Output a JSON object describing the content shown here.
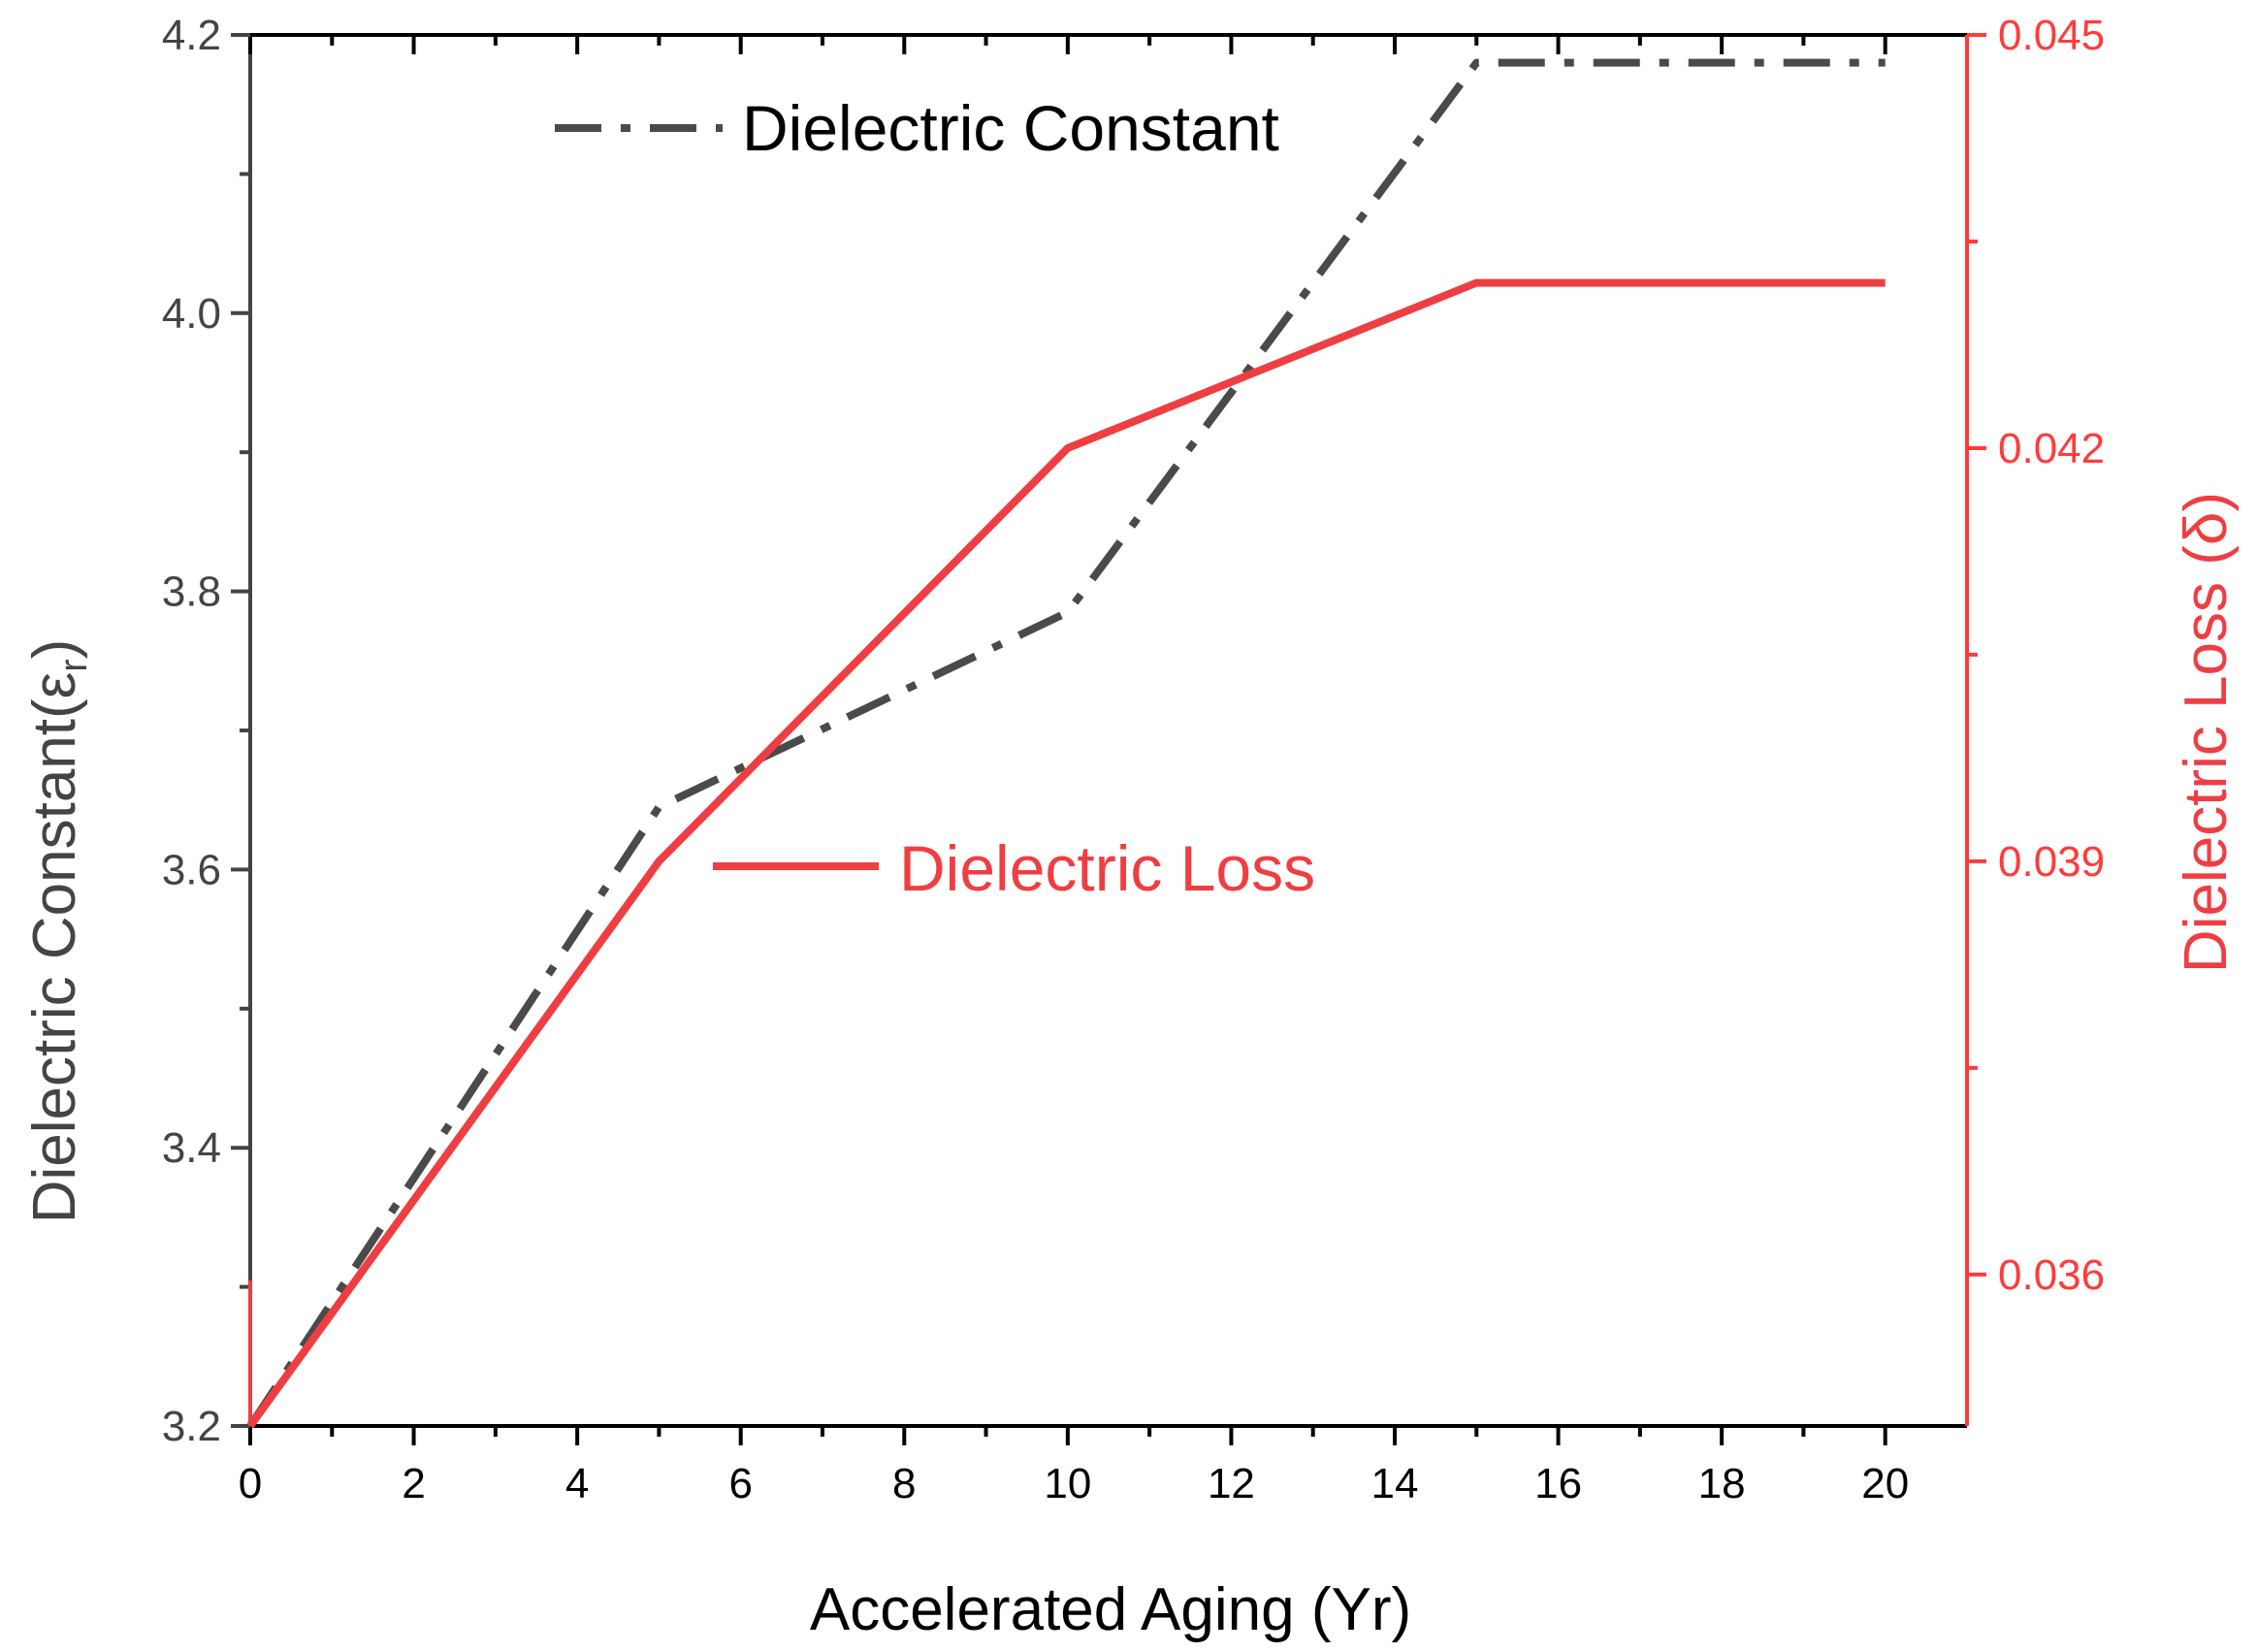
{
  "chart_data": {
    "type": "line",
    "title": "",
    "xlabel": "Accelerated Aging (Yr)",
    "ylabel_left": "Dielectric Constant(εr)",
    "ylabel_left_main": "Dielectric Constant(ε",
    "ylabel_left_sub": "r",
    "ylabel_left_close": ")",
    "ylabel_right": "Dielectric Loss (δ)",
    "x_ticks": [
      "0",
      "2",
      "4",
      "6",
      "8",
      "10",
      "12",
      "14",
      "16",
      "18",
      "20"
    ],
    "y_left_ticks": [
      "3.2",
      "3.4",
      "3.6",
      "3.8",
      "4.0",
      "4.2"
    ],
    "y_right_ticks": [
      "0.036",
      "0.039",
      "0.042",
      "0.045"
    ],
    "xlim": [
      0,
      21
    ],
    "ylim_left": [
      3.2,
      4.2
    ],
    "ylim_right": [
      0.0349,
      0.045
    ],
    "series": [
      {
        "name": "Dielectric Constant",
        "axis": "left",
        "style": "dash-dot",
        "color": "#4a4a4a",
        "x": [
          0,
          5,
          10,
          15,
          20
        ],
        "values": [
          3.2,
          3.645,
          3.785,
          4.18,
          4.18
        ]
      },
      {
        "name": "Dielectric Loss",
        "axis": "right",
        "style": "solid",
        "color": "#ef3e42",
        "x": [
          0,
          5,
          10,
          15,
          20
        ],
        "values": [
          0.0349,
          0.039,
          0.042,
          0.0432,
          0.0432
        ]
      }
    ],
    "legend": [
      {
        "label": "Dielectric Constant",
        "color": "#4a4a4a",
        "style": "dash-dot"
      },
      {
        "label": "Dielectric Loss",
        "color": "#ef3e42",
        "style": "solid"
      }
    ]
  }
}
